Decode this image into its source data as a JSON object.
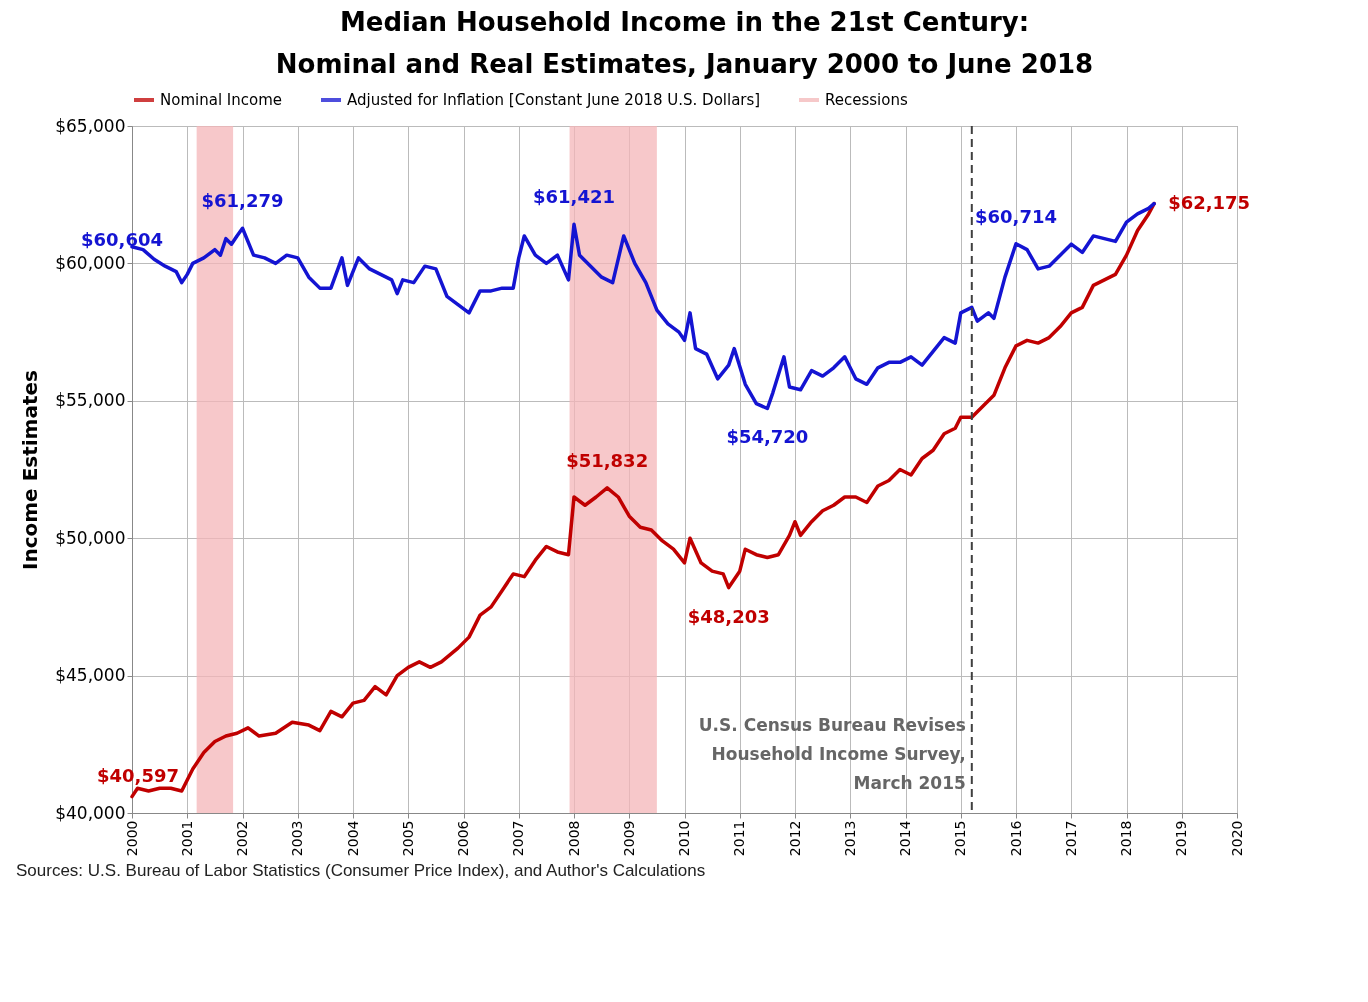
{
  "chart_data": {
    "type": "line",
    "title": "Median Household Income in the 21st Century:\nNominal and Real Estimates, January 2000 to June 2018",
    "ylabel": "Income Estimates",
    "xlim": [
      2000,
      2020
    ],
    "xticks": [
      2000,
      2001,
      2002,
      2003,
      2004,
      2005,
      2006,
      2007,
      2008,
      2009,
      2010,
      2011,
      2012,
      2013,
      2014,
      2015,
      2016,
      2017,
      2018,
      2019,
      2020
    ],
    "ylim": [
      40000,
      65000
    ],
    "yticks": [
      {
        "value": 40000,
        "label": "$40,000"
      },
      {
        "value": 45000,
        "label": "$45,000"
      },
      {
        "value": 50000,
        "label": "$50,000"
      },
      {
        "value": 55000,
        "label": "$55,000"
      },
      {
        "value": 60000,
        "label": "$60,000"
      },
      {
        "value": 65000,
        "label": "$65,000"
      }
    ],
    "grid": true,
    "legend": "top",
    "line_style": "solid",
    "series": [
      {
        "name": "Nominal Income",
        "color": "#c00000",
        "x": [
          2000.0,
          2000.1,
          2000.3,
          2000.5,
          2000.7,
          2000.9,
          2001.1,
          2001.3,
          2001.5,
          2001.7,
          2001.9,
          2002.1,
          2002.3,
          2002.6,
          2002.9,
          2003.2,
          2003.4,
          2003.6,
          2003.8,
          2004.0,
          2004.2,
          2004.4,
          2004.6,
          2004.8,
          2005.0,
          2005.2,
          2005.4,
          2005.6,
          2005.9,
          2006.1,
          2006.3,
          2006.5,
          2006.7,
          2006.9,
          2007.1,
          2007.3,
          2007.5,
          2007.7,
          2007.9,
          2008.0,
          2008.2,
          2008.4,
          2008.6,
          2008.8,
          2009.0,
          2009.2,
          2009.4,
          2009.6,
          2009.8,
          2010.0,
          2010.1,
          2010.3,
          2010.5,
          2010.7,
          2010.8,
          2011.0,
          2011.1,
          2011.3,
          2011.5,
          2011.7,
          2011.9,
          2012.0,
          2012.1,
          2012.3,
          2012.5,
          2012.7,
          2012.9,
          2013.1,
          2013.3,
          2013.5,
          2013.7,
          2013.9,
          2014.1,
          2014.3,
          2014.5,
          2014.7,
          2014.9,
          2015.0,
          2015.2,
          2015.4,
          2015.6,
          2015.8,
          2016.0,
          2016.2,
          2016.4,
          2016.6,
          2016.8,
          2017.0,
          2017.2,
          2017.4,
          2017.6,
          2017.8,
          2018.0,
          2018.2,
          2018.4,
          2018.5
        ],
        "values": [
          40597,
          40900,
          40800,
          40900,
          40900,
          40800,
          41600,
          42200,
          42600,
          42800,
          42900,
          43100,
          42800,
          42900,
          43300,
          43200,
          43000,
          43700,
          43500,
          44000,
          44100,
          44600,
          44300,
          45000,
          45300,
          45500,
          45300,
          45500,
          46000,
          46400,
          47200,
          47500,
          48100,
          48700,
          48600,
          49200,
          49700,
          49500,
          49400,
          51500,
          51200,
          51500,
          51832,
          51500,
          50800,
          50400,
          50300,
          49900,
          49600,
          49100,
          50000,
          49100,
          48800,
          48700,
          48203,
          48800,
          49600,
          49400,
          49300,
          49400,
          50100,
          50600,
          50100,
          50600,
          51000,
          51200,
          51500,
          51500,
          51300,
          51900,
          52100,
          52500,
          52300,
          52900,
          53200,
          53800,
          54000,
          54400,
          54400,
          54800,
          55200,
          56200,
          57000,
          57200,
          57100,
          57300,
          57700,
          58200,
          58400,
          59200,
          59400,
          59600,
          60300,
          61200,
          61800,
          62175
        ]
      },
      {
        "name": "Adjusted for Inflation [Constant June 2018 U.S. Dollars]",
        "color": "#1414d2",
        "x": [
          2000.0,
          2000.2,
          2000.4,
          2000.6,
          2000.8,
          2000.9,
          2001.0,
          2001.1,
          2001.3,
          2001.5,
          2001.6,
          2001.7,
          2001.8,
          2001.9,
          2002.0,
          2002.2,
          2002.4,
          2002.6,
          2002.8,
          2003.0,
          2003.2,
          2003.4,
          2003.6,
          2003.8,
          2003.9,
          2004.1,
          2004.3,
          2004.5,
          2004.7,
          2004.8,
          2004.9,
          2005.1,
          2005.3,
          2005.5,
          2005.7,
          2005.9,
          2006.1,
          2006.3,
          2006.5,
          2006.7,
          2006.9,
          2007.0,
          2007.1,
          2007.3,
          2007.5,
          2007.7,
          2007.9,
          2008.0,
          2008.1,
          2008.3,
          2008.5,
          2008.7,
          2008.9,
          2009.1,
          2009.3,
          2009.5,
          2009.7,
          2009.9,
          2010.0,
          2010.1,
          2010.2,
          2010.4,
          2010.6,
          2010.8,
          2010.9,
          2011.1,
          2011.3,
          2011.5,
          2011.6,
          2011.8,
          2011.9,
          2012.1,
          2012.3,
          2012.5,
          2012.7,
          2012.9,
          2013.1,
          2013.3,
          2013.5,
          2013.7,
          2013.9,
          2014.1,
          2014.3,
          2014.5,
          2014.7,
          2014.9,
          2015.0,
          2015.2,
          2015.3,
          2015.5,
          2015.6,
          2015.8,
          2016.0,
          2016.2,
          2016.4,
          2016.6,
          2016.8,
          2017.0,
          2017.2,
          2017.4,
          2017.6,
          2017.8,
          2018.0,
          2018.2,
          2018.4,
          2018.5
        ],
        "values": [
          60604,
          60500,
          60150,
          59900,
          59700,
          59300,
          59600,
          60000,
          60200,
          60500,
          60300,
          60900,
          60700,
          61000,
          61279,
          60300,
          60200,
          60000,
          60300,
          60200,
          59500,
          59100,
          59100,
          60200,
          59200,
          60200,
          59800,
          59600,
          59400,
          58900,
          59400,
          59300,
          59900,
          59800,
          58800,
          58500,
          58200,
          59000,
          59000,
          59100,
          59100,
          60200,
          61000,
          60300,
          60000,
          60300,
          59400,
          61421,
          60300,
          59900,
          59500,
          59300,
          61000,
          60000,
          59300,
          58300,
          57800,
          57500,
          57200,
          58200,
          56900,
          56700,
          55800,
          56300,
          56900,
          55600,
          54900,
          54720,
          55300,
          56600,
          55500,
          55400,
          56100,
          55900,
          56200,
          56600,
          55800,
          55600,
          56200,
          56400,
          56400,
          56600,
          56300,
          56800,
          57300,
          57100,
          58200,
          58400,
          57900,
          58200,
          58000,
          59500,
          60714,
          60500,
          59800,
          59900,
          60300,
          60700,
          60400,
          61000,
          60900,
          60800,
          61500,
          61800,
          62000,
          62175
        ]
      }
    ],
    "bands": [
      {
        "axis": "x",
        "from": 2001.17,
        "to": 2001.83,
        "label": "Recessions",
        "color": "#f4b6b8"
      },
      {
        "axis": "x",
        "from": 2007.92,
        "to": 2009.5,
        "color": "#f4b6b8"
      }
    ],
    "ref_lines": [
      {
        "axis": "x",
        "value": 2015.2,
        "label": "U.S. Census Bureau Revises\nHousehold Income Survey,\nMarch 2015",
        "color": "#404040",
        "line_style": "dashed"
      }
    ],
    "annotations": [
      {
        "text": "$60,604",
        "x": 2000.0,
        "y": 60604
      },
      {
        "text": "$61,279",
        "x": 2002.0,
        "y": 61279
      },
      {
        "text": "$61,421",
        "x": 2008.0,
        "y": 61421
      },
      {
        "text": "$54,720",
        "x": 2011.5,
        "y": 54720
      },
      {
        "text": "$60,714",
        "x": 2016.0,
        "y": 60714
      },
      {
        "text": "$40,597",
        "x": 2000.0,
        "y": 40597
      },
      {
        "text": "$51,832",
        "x": 2008.6,
        "y": 51832
      },
      {
        "text": "$48,203",
        "x": 2010.8,
        "y": 48203
      },
      {
        "text": "$62,175",
        "x": 2018.5,
        "y": 62175
      },
      "Sources: U.S. Bureau of Labor Statistics (Consumer Price Index), and Author's Calculations"
    ]
  }
}
